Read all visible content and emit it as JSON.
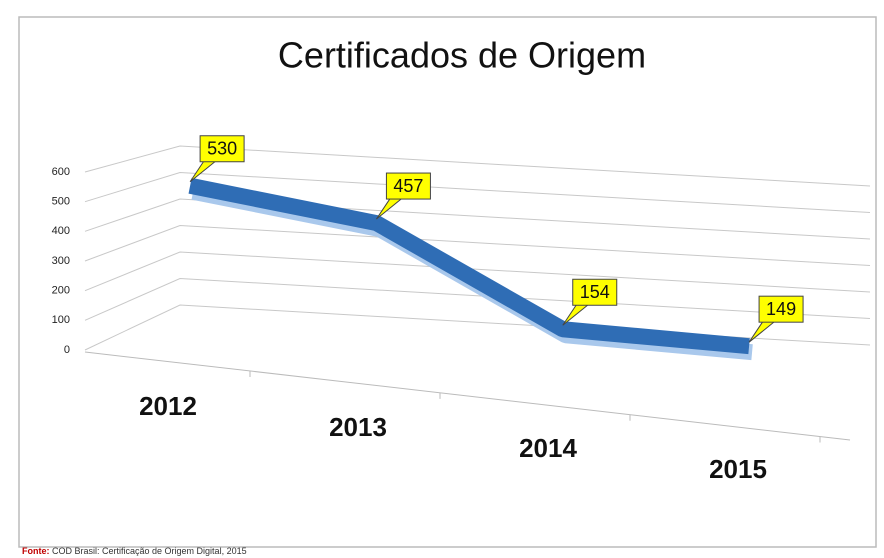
{
  "chart_data": {
    "type": "line3d",
    "title": "Certificados de Origem",
    "categories": [
      "2012",
      "2013",
      "2014",
      "2015"
    ],
    "values": [
      530,
      457,
      154,
      149
    ],
    "color": "#2f6db5",
    "ylim": [
      0,
      600
    ],
    "yticks": [
      0,
      100,
      200,
      300,
      400,
      500,
      600
    ],
    "grid": true,
    "source_label": "Fonte:",
    "source": "COD Brasil: Certificação de Origem Digital, 2015"
  }
}
